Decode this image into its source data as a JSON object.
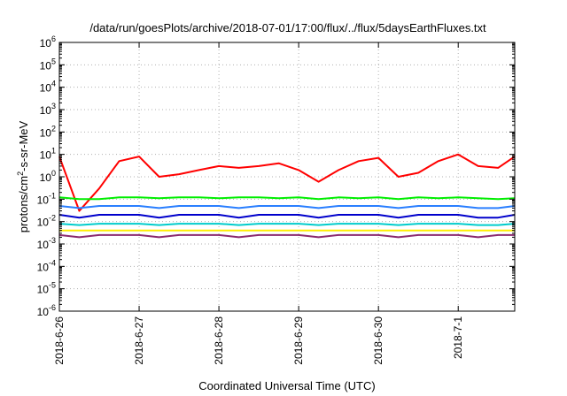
{
  "chart_data": {
    "type": "line",
    "title": "/data/run/goesPlots/archive/2018-07-01/17:00/flux/../flux/5daysEarthFluxes.txt",
    "xlabel": "Coordinated Universal Time (UTC)",
    "ylabel_parts": [
      "protons/cm",
      "2",
      "-s-sr-MeV"
    ],
    "yscale": "log",
    "ylim": [
      -6,
      6
    ],
    "y_ticks": [
      {
        "exp": -6,
        "base": "10",
        "sup": "-6"
      },
      {
        "exp": -5,
        "base": "10",
        "sup": "-5"
      },
      {
        "exp": -4,
        "base": "10",
        "sup": "-4"
      },
      {
        "exp": -3,
        "base": "10",
        "sup": "-3"
      },
      {
        "exp": -2,
        "base": "10",
        "sup": "-2"
      },
      {
        "exp": -1,
        "base": "10",
        "sup": "-1"
      },
      {
        "exp": 0,
        "base": "10",
        "sup": "0"
      },
      {
        "exp": 1,
        "base": "10",
        "sup": "1"
      },
      {
        "exp": 2,
        "base": "10",
        "sup": "2"
      },
      {
        "exp": 3,
        "base": "10",
        "sup": "3"
      },
      {
        "exp": 4,
        "base": "10",
        "sup": "4"
      },
      {
        "exp": 5,
        "base": "10",
        "sup": "5"
      },
      {
        "exp": 6,
        "base": "10",
        "sup": "6"
      }
    ],
    "xlim": [
      "2018-06-26 00:00",
      "2018-07-01 17:00"
    ],
    "x_ticks": [
      "2018-6-26",
      "2018-6-27",
      "2018-6-28",
      "2018-6-29",
      "2018-6-30",
      "2018-7-1"
    ],
    "grid": true,
    "x": [
      "2018-06-26 00:00",
      "2018-06-26 06:00",
      "2018-06-26 12:00",
      "2018-06-26 18:00",
      "2018-06-27 00:00",
      "2018-06-27 06:00",
      "2018-06-27 12:00",
      "2018-06-27 18:00",
      "2018-06-28 00:00",
      "2018-06-28 06:00",
      "2018-06-28 12:00",
      "2018-06-28 18:00",
      "2018-06-29 00:00",
      "2018-06-29 06:00",
      "2018-06-29 12:00",
      "2018-06-29 18:00",
      "2018-06-30 00:00",
      "2018-06-30 06:00",
      "2018-06-30 12:00",
      "2018-06-30 18:00",
      "2018-07-01 00:00",
      "2018-07-01 06:00",
      "2018-07-01 12:00",
      "2018-07-01 17:00"
    ],
    "series": [
      {
        "color": "#ff0000",
        "values": [
          8,
          0.03,
          0.3,
          5,
          8,
          1,
          1.3,
          2,
          3,
          2.5,
          3,
          4,
          2,
          0.6,
          2,
          5,
          7,
          1,
          1.5,
          5,
          10,
          3,
          2.5,
          8
        ]
      },
      {
        "color": "#00ee00",
        "values": [
          0.12,
          0.1,
          0.1,
          0.12,
          0.12,
          0.11,
          0.12,
          0.12,
          0.11,
          0.12,
          0.12,
          0.11,
          0.12,
          0.1,
          0.12,
          0.11,
          0.12,
          0.1,
          0.12,
          0.11,
          0.12,
          0.11,
          0.1,
          0.11
        ]
      },
      {
        "color": "#2a7fff",
        "values": [
          0.05,
          0.04,
          0.05,
          0.05,
          0.05,
          0.04,
          0.05,
          0.05,
          0.05,
          0.04,
          0.05,
          0.05,
          0.05,
          0.04,
          0.05,
          0.05,
          0.05,
          0.04,
          0.05,
          0.05,
          0.05,
          0.04,
          0.04,
          0.05
        ]
      },
      {
        "color": "#0000cc",
        "values": [
          0.02,
          0.015,
          0.02,
          0.02,
          0.02,
          0.015,
          0.02,
          0.02,
          0.02,
          0.015,
          0.02,
          0.02,
          0.02,
          0.015,
          0.02,
          0.02,
          0.02,
          0.015,
          0.02,
          0.02,
          0.02,
          0.015,
          0.015,
          0.02
        ]
      },
      {
        "color": "#00cccc",
        "values": [
          0.008,
          0.007,
          0.008,
          0.008,
          0.008,
          0.007,
          0.008,
          0.008,
          0.008,
          0.007,
          0.008,
          0.008,
          0.008,
          0.007,
          0.008,
          0.008,
          0.008,
          0.007,
          0.008,
          0.008,
          0.008,
          0.007,
          0.007,
          0.008
        ]
      },
      {
        "color": "#ffee00",
        "values": [
          0.004,
          0.004,
          0.004,
          0.004,
          0.004,
          0.004,
          0.004,
          0.004,
          0.004,
          0.004,
          0.004,
          0.004,
          0.004,
          0.004,
          0.004,
          0.004,
          0.004,
          0.004,
          0.004,
          0.004,
          0.004,
          0.004,
          0.004,
          0.004
        ]
      },
      {
        "color": "#8b2a6e",
        "values": [
          0.0025,
          0.002,
          0.0025,
          0.0025,
          0.0025,
          0.002,
          0.0025,
          0.0025,
          0.0025,
          0.002,
          0.0025,
          0.0025,
          0.0025,
          0.002,
          0.0025,
          0.0025,
          0.0025,
          0.002,
          0.0025,
          0.0025,
          0.0025,
          0.002,
          0.0025,
          0.0025
        ]
      }
    ]
  }
}
